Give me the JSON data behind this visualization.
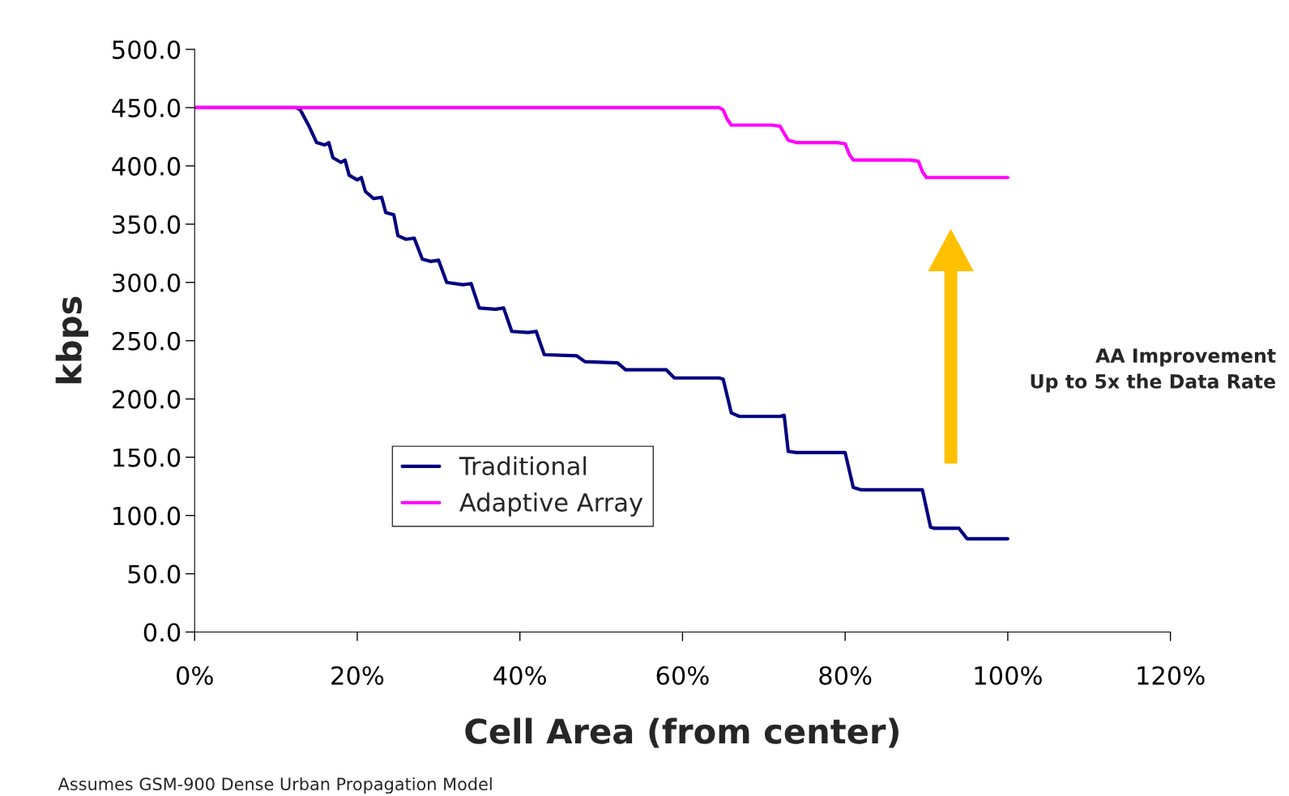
{
  "chart_data": {
    "type": "line",
    "xlabel": "Cell Area (from center)",
    "ylabel": "kbps",
    "xlim": [
      0,
      120
    ],
    "xticks": [
      {
        "value": 0,
        "label": "0%"
      },
      {
        "value": 20,
        "label": "20%"
      },
      {
        "value": 40,
        "label": "40%"
      },
      {
        "value": 60,
        "label": "60%"
      },
      {
        "value": 80,
        "label": "80%"
      },
      {
        "value": 100,
        "label": "100%"
      },
      {
        "value": 120,
        "label": "120%"
      }
    ],
    "ylim": [
      0,
      500
    ],
    "yticks": [
      {
        "value": 0,
        "label": "0.0"
      },
      {
        "value": 50,
        "label": "50.0"
      },
      {
        "value": 100,
        "label": "100.0"
      },
      {
        "value": 150,
        "label": "150.0"
      },
      {
        "value": 200,
        "label": "200.0"
      },
      {
        "value": 250,
        "label": "250.0"
      },
      {
        "value": 300,
        "label": "300.0"
      },
      {
        "value": 350,
        "label": "350.0"
      },
      {
        "value": 400,
        "label": "400.0"
      },
      {
        "value": 450,
        "label": "450.0"
      },
      {
        "value": 500,
        "label": "500.0"
      }
    ],
    "grid": false,
    "legend": "center left",
    "marker": "none",
    "line_style": "solid",
    "series": [
      {
        "name": "Traditional",
        "color": "#000080",
        "x": [
          0,
          12.5,
          13,
          14,
          15,
          16,
          16.5,
          17,
          18,
          18.5,
          19,
          20,
          20.5,
          21,
          22,
          23,
          23.5,
          24.5,
          25,
          26,
          27,
          28,
          29,
          30,
          31,
          33,
          34,
          35,
          37,
          38,
          39,
          41,
          42,
          43,
          47,
          48,
          52,
          53,
          58,
          59,
          64.5,
          65,
          66,
          67,
          72,
          72.5,
          73,
          74,
          80,
          81,
          82,
          89,
          89.5,
          90.5,
          91,
          94,
          95,
          100
        ],
        "values": [
          450,
          450,
          448,
          435,
          420,
          418,
          420,
          407,
          403,
          405,
          392,
          388,
          390,
          378,
          372,
          373,
          360,
          358,
          340,
          337,
          338,
          320,
          318,
          319,
          300,
          298,
          299,
          278,
          277,
          278,
          258,
          257,
          258,
          238,
          237,
          232,
          231,
          225,
          225,
          218,
          218,
          217,
          188,
          185,
          185,
          186,
          155,
          154,
          154,
          124,
          122,
          122,
          122,
          90,
          89,
          89,
          80,
          80
        ]
      },
      {
        "name": "Adaptive Array",
        "color": "#ff00ff",
        "x": [
          0,
          64.5,
          65,
          65.5,
          66,
          71,
          72,
          73,
          74,
          79,
          80,
          80.5,
          81,
          88,
          89,
          89.5,
          90,
          100
        ],
        "values": [
          450,
          450,
          448,
          440,
          435,
          435,
          434,
          422,
          420,
          420,
          419,
          410,
          405,
          405,
          404,
          395,
          390,
          390
        ]
      }
    ],
    "annotations": [
      "AA Improvement\nUp to 5x the Data Rate",
      "Assumes GSM-900 Dense Urban Propagation Model"
    ]
  }
}
